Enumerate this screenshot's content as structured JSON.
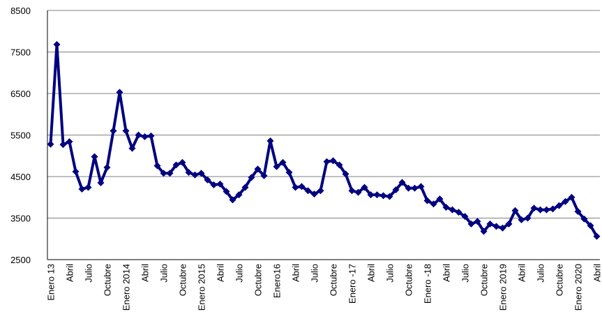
{
  "chart_data": {
    "type": "line",
    "title": "",
    "xlabel": "",
    "ylabel": "",
    "ylim": [
      2500,
      8500
    ],
    "yticks": [
      2500,
      3500,
      4500,
      5500,
      6500,
      7500,
      8500
    ],
    "grid": true,
    "legend": "none",
    "colors": {
      "series": "#000080",
      "grid": "#808080",
      "axis": "#000000"
    },
    "categories": [
      "Enero 13",
      "",
      "",
      "Abril",
      "",
      "",
      "Julio",
      "",
      "",
      "Octubre",
      "",
      "",
      "Enero 2014",
      "",
      "",
      "Abril",
      "",
      "",
      "Julio",
      "",
      "",
      "Octubre",
      "",
      "",
      "Enero 2015",
      "",
      "",
      "Abril",
      "",
      "",
      "Julio",
      "",
      "",
      "Octubre",
      "",
      "",
      "Enero16",
      "",
      "",
      "Abril",
      "",
      "",
      "Julio",
      "",
      "",
      "Octubre",
      "",
      "",
      "Enero -17",
      "",
      "",
      "Abril",
      "",
      "",
      "Julio",
      "",
      "",
      "Octubre",
      "",
      "",
      "Enero -18",
      "",
      "",
      "Abril",
      "",
      "",
      "Julio",
      "",
      "",
      "Octubre",
      "",
      "",
      "Enero 2019",
      "",
      "",
      "Abril",
      "",
      "",
      "Julio",
      "",
      "",
      "Octubre",
      "",
      "",
      "Enero  2020",
      "",
      "",
      "Abril"
    ],
    "series": [
      {
        "values": [
          5280,
          7680,
          5270,
          5340,
          4620,
          4200,
          4240,
          4980,
          4350,
          4720,
          5600,
          6530,
          5600,
          5180,
          5500,
          5460,
          5480,
          4760,
          4580,
          4580,
          4780,
          4840,
          4600,
          4540,
          4580,
          4420,
          4300,
          4320,
          4140,
          3940,
          4060,
          4240,
          4480,
          4680,
          4520,
          5360,
          4740,
          4840,
          4600,
          4240,
          4260,
          4160,
          4080,
          4160,
          4860,
          4880,
          4780,
          4560,
          4160,
          4120,
          4240,
          4060,
          4060,
          4040,
          4020,
          4180,
          4360,
          4220,
          4220,
          4260,
          3920,
          3840,
          3960,
          3760,
          3700,
          3640,
          3540,
          3360,
          3420,
          3180,
          3360,
          3300,
          3260,
          3360,
          3680,
          3460,
          3500,
          3740,
          3700,
          3700,
          3720,
          3800,
          3900,
          4000,
          3660,
          3480,
          3320,
          3060
        ]
      }
    ]
  }
}
